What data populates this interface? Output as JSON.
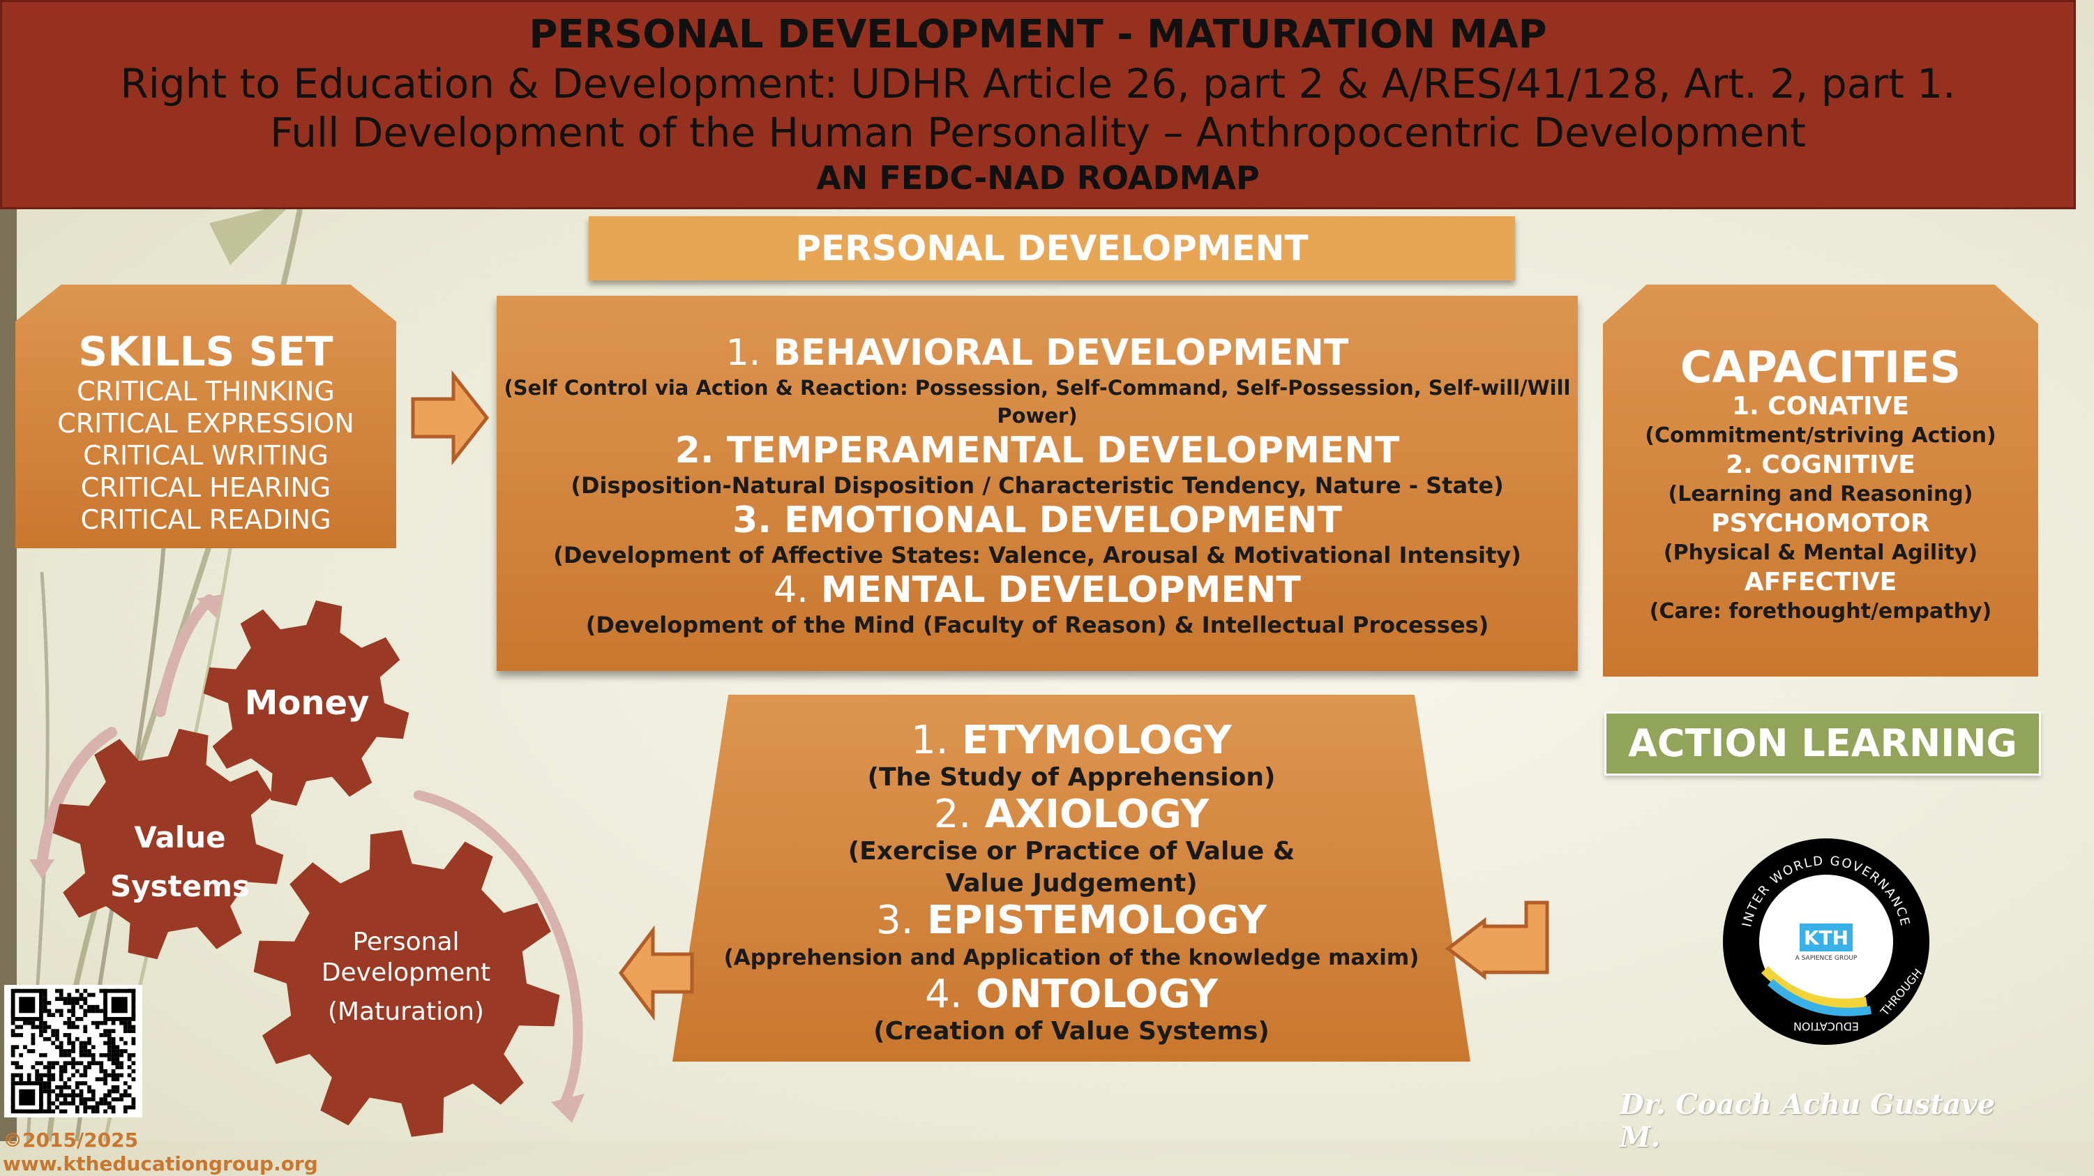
{
  "header": {
    "title": "PERSONAL DEVELOPMENT - MATURATION MAP",
    "line2": "Right to Education & Development: UDHR Article 26, part 2 & A/RES/41/128, Art. 2, part 1.",
    "line3": "Full Development of the Human Personality – Anthropocentric Development",
    "line4": "AN FEDC-NAD ROADMAP"
  },
  "personal_development_label": "PERSONAL DEVELOPMENT",
  "skills": {
    "title": "SKILLS SET",
    "items": [
      "CRITICAL THINKING",
      "CRITICAL EXPRESSION",
      "CRITICAL WRITING",
      "CRITICAL HEARING",
      "CRITICAL READING"
    ]
  },
  "development": [
    {
      "num": "1.",
      "title": "BEHAVIORAL DEVELOPMENT",
      "desc": "(Self Control via Action & Reaction: Possession, Self-Command, Self-Possession, Self-will/Will Power)"
    },
    {
      "num": "2.",
      "title": "TEMPERAMENTAL DEVELOPMENT",
      "desc": "(Disposition-Natural Disposition / Characteristic Tendency, Nature - State)"
    },
    {
      "num": "3.",
      "title": "EMOTIONAL DEVELOPMENT",
      "desc": "(Development of Affective States: Valence, Arousal & Motivational Intensity)"
    },
    {
      "num": "4.",
      "title": "MENTAL DEVELOPMENT",
      "desc": "(Development of the Mind (Faculty of Reason) & Intellectual Processes)"
    }
  ],
  "capacities": {
    "title": "CAPACITIES",
    "items": [
      {
        "label": "1. CONATIVE",
        "desc": "(Commitment/striving Action)"
      },
      {
        "label": "2. COGNITIVE",
        "desc": "(Learning and Reasoning)"
      },
      {
        "label": "PSYCHOMOTOR",
        "desc": "(Physical & Mental Agility)"
      },
      {
        "label": "AFFECTIVE",
        "desc": "(Care: forethought/empathy)"
      }
    ]
  },
  "action_learning": "ACTION LEARNING",
  "philosophy": [
    {
      "num": "1.",
      "title": "ETYMOLOGY",
      "desc": "(The Study of Apprehension)"
    },
    {
      "num": "2.",
      "title": "AXIOLOGY",
      "desc": "(Exercise or Practice of  Value & Value Judgement)"
    },
    {
      "num": "3.",
      "title": "EPISTEMOLOGY",
      "desc": "(Apprehension and Application of the knowledge maxim)"
    },
    {
      "num": "4.",
      "title": "ONTOLOGY",
      "desc": "(Creation of Value Systems)"
    }
  ],
  "gears": {
    "money": "Money",
    "value_1": "Value",
    "value_2": "Systems",
    "pd_1": "Personal",
    "pd_2": "Development",
    "pd_3": "(Maturation)"
  },
  "logo": {
    "ring_top": "INTER WORLD GOVERNANCE",
    "ring_right": "THROUGH",
    "ring_bottom": "EDUCATION",
    "mark": "KTH",
    "sub": "A SAPIENCE GROUP"
  },
  "signature": "Dr. Coach Achu Gustave M.",
  "copyright": "©2015/2025 www.ktheducationgroup.org",
  "colors": {
    "banner": "#96311f",
    "orange": "#d98b45",
    "gear": "#9a3a24",
    "action_learning": "#92a35a"
  }
}
